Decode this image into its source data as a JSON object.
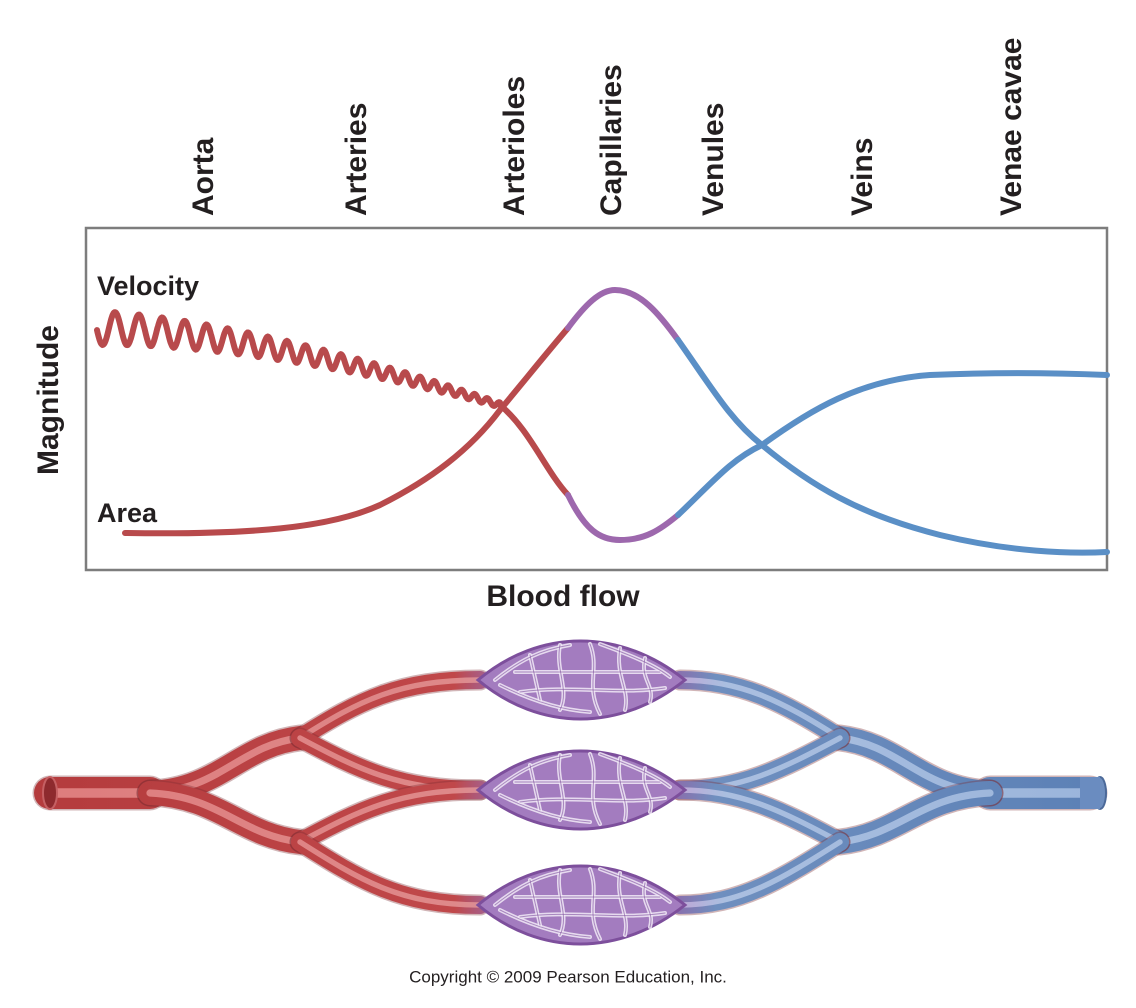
{
  "stages": [
    "Aorta",
    "Arteries",
    "Arterioles",
    "Capillaries",
    "Venules",
    "Veins",
    "Venae cavae"
  ],
  "curves": {
    "velocity": "Velocity",
    "area": "Area"
  },
  "y_axis_label": "Magnitude",
  "x_axis_label": "Blood flow",
  "copyright": "Copyright © 2009 Pearson Education, Inc."
}
